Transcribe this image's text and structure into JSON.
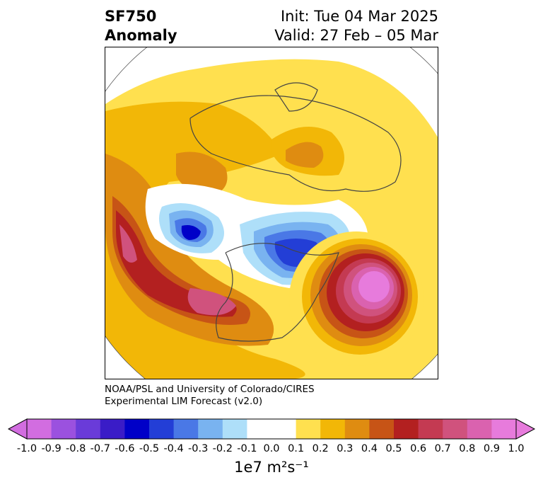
{
  "title": {
    "variable": "SF750",
    "kind": "Anomaly",
    "init": "Init: Tue 04 Mar 2025",
    "valid": "Valid: 27 Feb – 05 Mar"
  },
  "credit": {
    "line1": "NOAA/PSL and University of Colorado/CIRES",
    "line2": "Experimental LIM Forecast (v2.0)"
  },
  "colorbar": {
    "unit_label": "1e7 m²s⁻¹",
    "tick_labels": [
      "-1.0",
      "-0.9",
      "-0.8",
      "-0.7",
      "-0.6",
      "-0.5",
      "-0.4",
      "-0.3",
      "-0.2",
      "-0.1",
      "0.0",
      "0.1",
      "0.2",
      "0.3",
      "0.4",
      "0.5",
      "0.6",
      "0.7",
      "0.8",
      "0.9",
      "1.0"
    ],
    "colors": [
      "#d26de0",
      "#9b51df",
      "#6a3bd9",
      "#3a1cc7",
      "#0000c8",
      "#233ed6",
      "#4a78e6",
      "#79b3f0",
      "#aedff9",
      "#ffffff",
      "#ffffff",
      "#ffe04f",
      "#f2b707",
      "#df8c11",
      "#c75416",
      "#b32020",
      "#c43a52",
      "#d0527d",
      "#da62af",
      "#e77bdc"
    ]
  },
  "map": {
    "projection": "north-polar stereographic",
    "region": "Northern Hemisphere",
    "features": [
      {
        "name": "northeast-pacific-trough",
        "sign": "negative",
        "peak": -0.6
      },
      {
        "name": "canada-trough",
        "sign": "negative",
        "peak": -0.5
      },
      {
        "name": "north-atlantic-ridge",
        "sign": "positive",
        "peak": 0.9
      },
      {
        "name": "pacific-ridge",
        "sign": "positive",
        "peak": 0.7
      },
      {
        "name": "central-us-ridge",
        "sign": "positive",
        "peak": 0.7
      },
      {
        "name": "siberia-ridge",
        "sign": "positive",
        "peak": 0.4
      }
    ]
  }
}
